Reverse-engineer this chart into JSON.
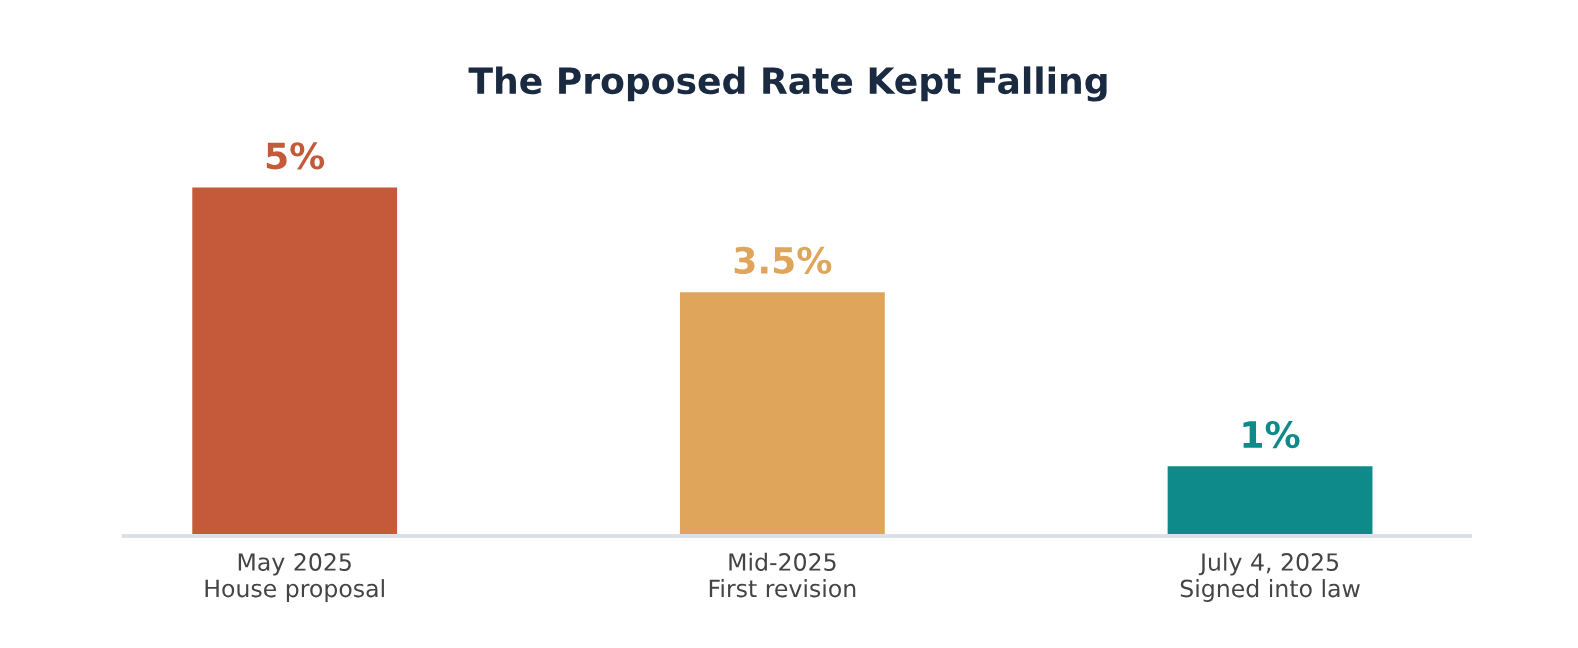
{
  "chart_data": {
    "type": "bar",
    "title": "The Proposed Rate Kept Falling",
    "categories": [
      "May 2025\nHouse proposal",
      "Mid-2025\nFirst revision",
      "July 4, 2025\nSigned into law"
    ],
    "values": [
      5,
      3.5,
      1
    ],
    "colors": [
      "#c55a3a",
      "#dfa55a",
      "#0e8a8a"
    ],
    "value_labels": [
      "5%",
      "3.5%",
      "1%"
    ],
    "tick_labels": "x",
    "grid": false
  }
}
